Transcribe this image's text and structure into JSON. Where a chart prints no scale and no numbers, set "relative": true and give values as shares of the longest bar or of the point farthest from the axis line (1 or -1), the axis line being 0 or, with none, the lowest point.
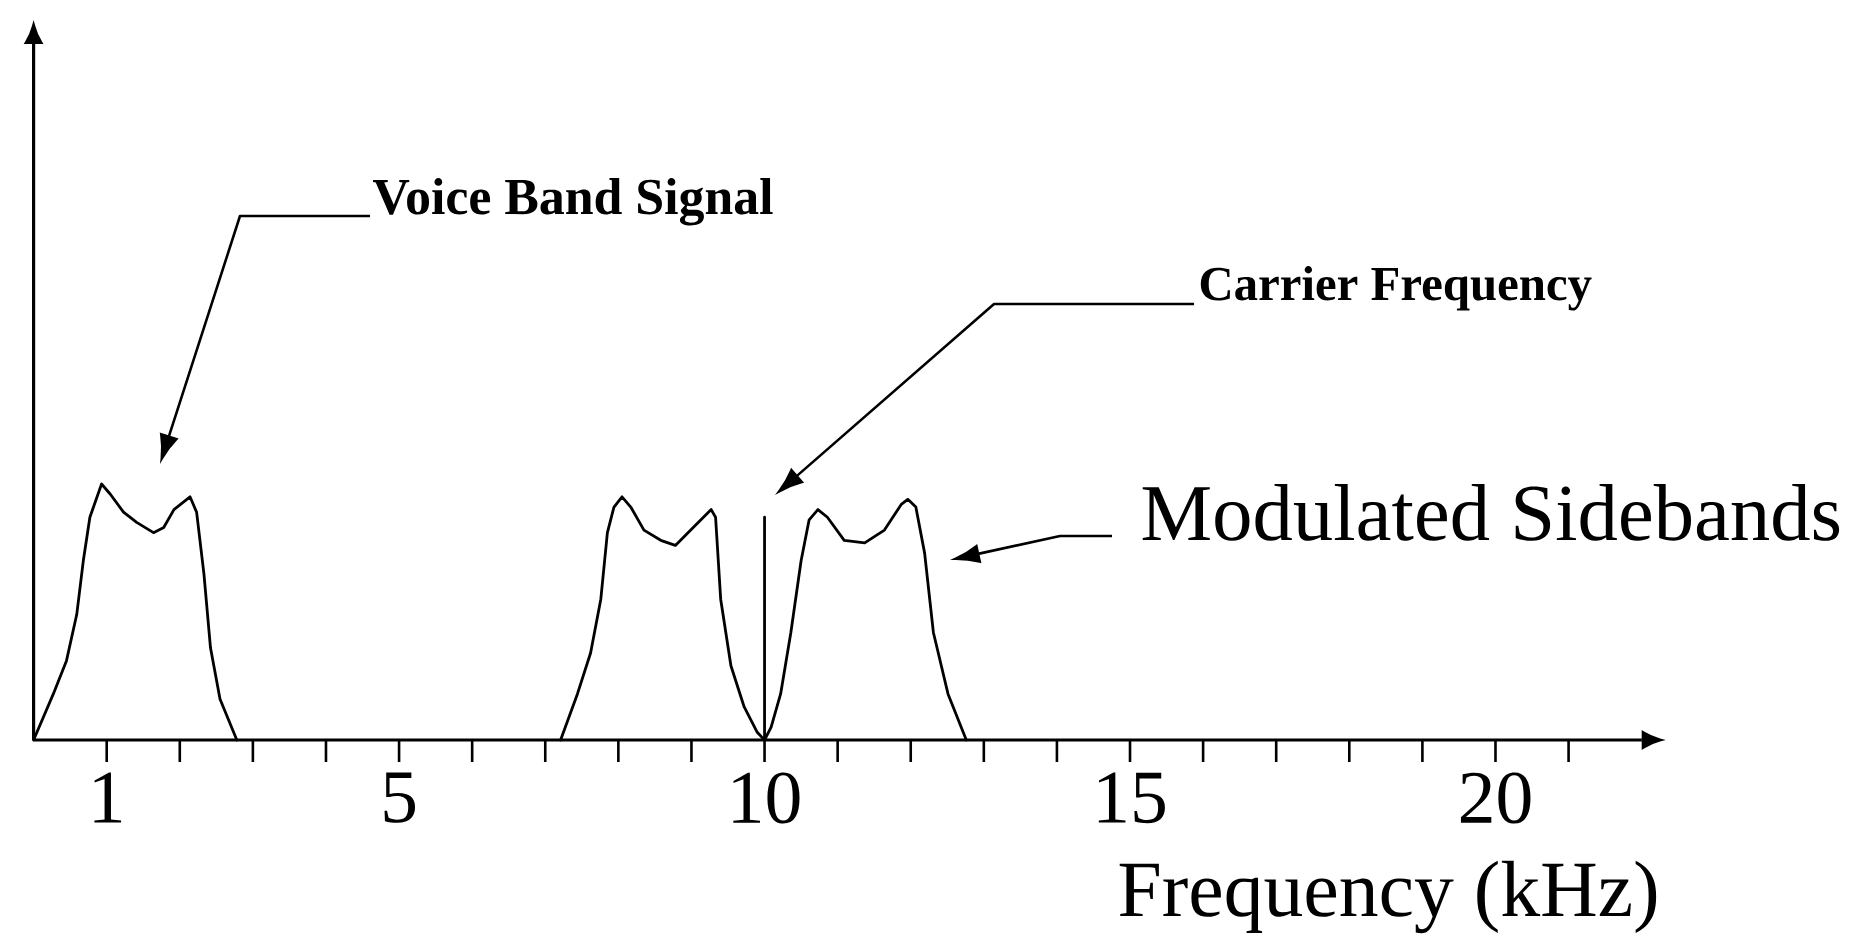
{
  "chart_data": {
    "type": "line",
    "relative": true,
    "xlabel": "Frequency (kHz)",
    "xlim": [
      0,
      22
    ],
    "xticks": [
      1,
      {
        "value": 2,
        "label": null
      },
      {
        "value": 3,
        "label": null
      },
      {
        "value": 4,
        "label": null
      },
      5,
      {
        "value": 6,
        "label": null
      },
      {
        "value": 7,
        "label": null
      },
      {
        "value": 8,
        "label": null
      },
      {
        "value": 9,
        "label": null
      },
      10,
      {
        "value": 11,
        "label": null
      },
      {
        "value": 12,
        "label": null
      },
      {
        "value": 13,
        "label": null
      },
      {
        "value": 14,
        "label": null
      },
      15,
      {
        "value": 16,
        "label": null
      },
      {
        "value": 17,
        "label": null
      },
      {
        "value": 18,
        "label": null
      },
      {
        "value": 19,
        "label": null
      },
      20,
      {
        "value": 21,
        "label": null
      }
    ],
    "series": [
      {
        "color": "#000000",
        "x": [
          0,
          0.27,
          0.45,
          0.59,
          0.68,
          0.77,
          0.93,
          1.05,
          1.23,
          1.41,
          1.64,
          1.78,
          1.92,
          2.14,
          2.23,
          2.33,
          2.42,
          2.55,
          2.78
        ],
        "values": [
          0,
          0.18,
          0.31,
          0.49,
          0.7,
          0.87,
          1,
          0.96,
          0.89,
          0.85,
          0.81,
          0.83,
          0.9,
          0.95,
          0.89,
          0.65,
          0.36,
          0.16,
          0
        ]
      },
      {
        "color": "#000000",
        "x": [
          7.21,
          7.44,
          7.62,
          7.76,
          7.85,
          7.94,
          8.05,
          8.17,
          8.35,
          8.58,
          8.78,
          8.99,
          9.27,
          9.33,
          9.4,
          9.54,
          9.72,
          9.9,
          10,
          10,
          10,
          10.09,
          10.22,
          10.36,
          10.5,
          10.61,
          10.73,
          10.86,
          11.09,
          11.37,
          11.64,
          11.87,
          11.96,
          12.07,
          12.19,
          12.31,
          12.51,
          12.76
        ],
        "values": [
          0,
          0.18,
          0.34,
          0.55,
          0.81,
          0.91,
          0.95,
          0.91,
          0.82,
          0.78,
          0.76,
          0.82,
          0.9,
          0.87,
          0.55,
          0.29,
          0.13,
          0.03,
          0,
          0.87,
          0,
          0.05,
          0.18,
          0.42,
          0.7,
          0.86,
          0.9,
          0.87,
          0.78,
          0.77,
          0.82,
          0.92,
          0.94,
          0.91,
          0.73,
          0.42,
          0.18,
          0
        ]
      }
    ],
    "annotations": [
      "Voice Band Signal",
      "Carrier Frequency",
      "Modulated Sidebands"
    ]
  }
}
